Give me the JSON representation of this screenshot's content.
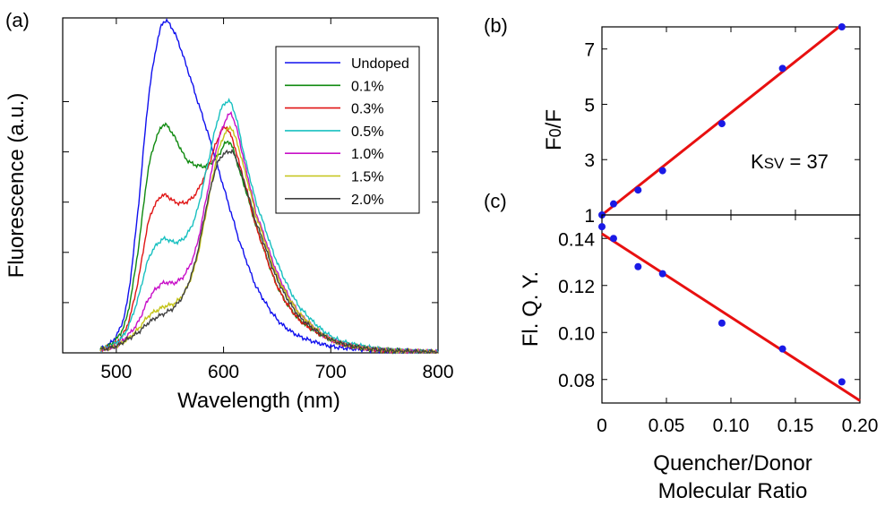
{
  "panel_labels": {
    "a": "(a)",
    "b": "(b)",
    "c": "(c)"
  },
  "chart_data": [
    {
      "id": "a",
      "type": "line",
      "title": "",
      "xlabel": "Wavelength (nm)",
      "ylabel": "Fluorescence (a.u.)",
      "xlim": [
        450,
        800
      ],
      "ylim": [
        0,
        1.0
      ],
      "xticks": [
        500,
        600,
        700,
        800
      ],
      "yticks": [
        0.15,
        0.3,
        0.45,
        0.6,
        0.75
      ],
      "yticklabels_shown": false,
      "grid": false,
      "legend": "top-right",
      "series": [
        {
          "name": "Undoped",
          "color": "#1010ee",
          "x": [
            485,
            500,
            510,
            520,
            530,
            540,
            546,
            555,
            565,
            575,
            585,
            595,
            605,
            615,
            630,
            650,
            670,
            700,
            730,
            760,
            800
          ],
          "y": [
            0.01,
            0.05,
            0.15,
            0.42,
            0.76,
            0.95,
            0.99,
            0.95,
            0.86,
            0.76,
            0.66,
            0.55,
            0.44,
            0.33,
            0.2,
            0.1,
            0.05,
            0.02,
            0.01,
            0.005,
            0.002
          ]
        },
        {
          "name": "0.1%",
          "color": "#108a10",
          "x": [
            485,
            500,
            510,
            520,
            530,
            540,
            546,
            555,
            565,
            575,
            585,
            595,
            605,
            615,
            630,
            650,
            670,
            700,
            730,
            760,
            800
          ],
          "y": [
            0.01,
            0.04,
            0.11,
            0.3,
            0.55,
            0.66,
            0.68,
            0.64,
            0.58,
            0.56,
            0.56,
            0.59,
            0.63,
            0.54,
            0.38,
            0.2,
            0.1,
            0.04,
            0.015,
            0.006,
            0.002
          ]
        },
        {
          "name": "0.3%",
          "color": "#e01515",
          "x": [
            485,
            500,
            510,
            520,
            530,
            540,
            546,
            555,
            565,
            575,
            585,
            595,
            600,
            605,
            615,
            630,
            650,
            670,
            700,
            730,
            760,
            800
          ],
          "y": [
            0.01,
            0.03,
            0.08,
            0.21,
            0.39,
            0.46,
            0.47,
            0.45,
            0.45,
            0.48,
            0.55,
            0.64,
            0.67,
            0.66,
            0.56,
            0.38,
            0.2,
            0.1,
            0.04,
            0.015,
            0.006,
            0.002
          ]
        },
        {
          "name": "0.5%",
          "color": "#18c0c0",
          "x": [
            485,
            500,
            510,
            520,
            530,
            540,
            546,
            555,
            565,
            575,
            585,
            595,
            603,
            610,
            620,
            630,
            650,
            670,
            700,
            730,
            760,
            800
          ],
          "y": [
            0.01,
            0.03,
            0.07,
            0.16,
            0.28,
            0.33,
            0.34,
            0.33,
            0.35,
            0.42,
            0.56,
            0.7,
            0.75,
            0.72,
            0.58,
            0.45,
            0.27,
            0.14,
            0.05,
            0.02,
            0.007,
            0.002
          ]
        },
        {
          "name": "1.0%",
          "color": "#c810c8",
          "x": [
            485,
            500,
            510,
            520,
            530,
            540,
            546,
            555,
            565,
            575,
            585,
            595,
            605,
            610,
            620,
            630,
            650,
            670,
            700,
            730,
            760,
            800
          ],
          "y": [
            0.01,
            0.02,
            0.05,
            0.09,
            0.16,
            0.2,
            0.21,
            0.21,
            0.24,
            0.32,
            0.48,
            0.63,
            0.71,
            0.69,
            0.56,
            0.42,
            0.24,
            0.12,
            0.04,
            0.015,
            0.006,
            0.002
          ]
        },
        {
          "name": "1.5%",
          "color": "#c4c418",
          "x": [
            485,
            500,
            510,
            520,
            530,
            540,
            546,
            555,
            565,
            575,
            585,
            595,
            605,
            610,
            620,
            630,
            650,
            670,
            700,
            730,
            760,
            800
          ],
          "y": [
            0.01,
            0.02,
            0.04,
            0.07,
            0.11,
            0.13,
            0.14,
            0.15,
            0.19,
            0.28,
            0.44,
            0.6,
            0.67,
            0.65,
            0.54,
            0.41,
            0.23,
            0.12,
            0.04,
            0.015,
            0.006,
            0.002
          ]
        },
        {
          "name": "2.0%",
          "color": "#404040",
          "x": [
            485,
            500,
            510,
            520,
            530,
            540,
            546,
            555,
            565,
            575,
            585,
            595,
            605,
            610,
            620,
            630,
            650,
            670,
            700,
            730,
            760,
            800
          ],
          "y": [
            0.01,
            0.02,
            0.04,
            0.06,
            0.09,
            0.11,
            0.12,
            0.14,
            0.19,
            0.29,
            0.45,
            0.57,
            0.6,
            0.59,
            0.5,
            0.39,
            0.22,
            0.11,
            0.04,
            0.015,
            0.006,
            0.002
          ]
        }
      ]
    },
    {
      "id": "b",
      "type": "scatter",
      "title": "",
      "xlabel": "",
      "ylabel": "F0/F",
      "xlim": [
        0,
        0.2
      ],
      "ylim": [
        1,
        7.8
      ],
      "yticks": [
        1,
        3,
        5,
        7
      ],
      "xticks": [
        0,
        0.05,
        0.1,
        0.15,
        0.2
      ],
      "xticklabels_shown": false,
      "annotation": "KSV = 37",
      "points": {
        "color": "#1a1ae6",
        "x": [
          0,
          0.009,
          0.028,
          0.047,
          0.093,
          0.14,
          0.186
        ],
        "y": [
          1.0,
          1.4,
          1.9,
          2.6,
          4.3,
          6.3,
          7.8
        ]
      },
      "fit": {
        "color": "#e81010",
        "x": [
          0,
          0.186
        ],
        "y": [
          1.0,
          7.88
        ]
      }
    },
    {
      "id": "c",
      "type": "scatter",
      "title": "",
      "xlabel": "Quencher/Donor",
      "xlabel2": "Molecular Ratio",
      "ylabel": "Fl. Q. Y.",
      "xlim": [
        0,
        0.2
      ],
      "ylim": [
        0.07,
        0.15
      ],
      "xticks": [
        0,
        0.05,
        0.1,
        0.15,
        0.2
      ],
      "xticklabels": [
        "0",
        "0.05",
        "0.10",
        "0.15",
        "0.20"
      ],
      "yticks": [
        0.08,
        0.1,
        0.12,
        0.14
      ],
      "yticklabels": [
        "0.08",
        "0.10",
        "0.12",
        "0.14"
      ],
      "points": {
        "color": "#1a1ae6",
        "x": [
          0,
          0.009,
          0.028,
          0.047,
          0.093,
          0.14,
          0.186
        ],
        "y": [
          0.145,
          0.14,
          0.128,
          0.125,
          0.104,
          0.093,
          0.079
        ]
      },
      "fit": {
        "color": "#e81010",
        "x": [
          0,
          0.2
        ],
        "y": [
          0.142,
          0.071
        ]
      }
    }
  ]
}
